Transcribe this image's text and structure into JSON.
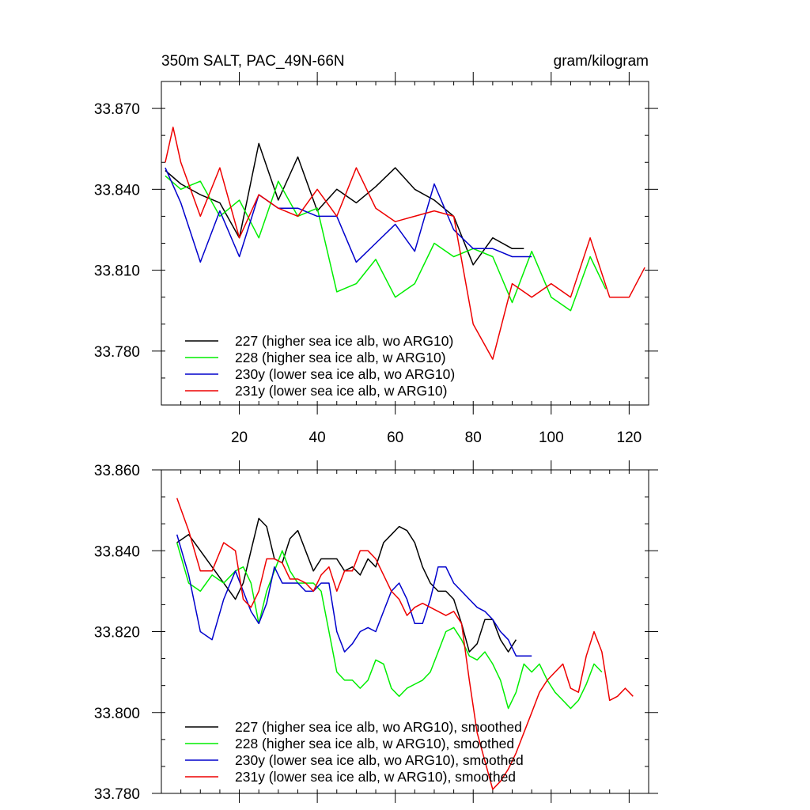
{
  "figure": {
    "title_left": "350m SALT, PAC_49N-66N",
    "title_right": "gram/kilogram"
  },
  "chart_data": [
    {
      "type": "line",
      "title": "350m SALT, PAC_49N-66N",
      "units": "gram/kilogram",
      "xlim": [
        0,
        125
      ],
      "ylim": [
        33.76,
        33.88
      ],
      "x_ticks": [
        20,
        40,
        60,
        80,
        100,
        120
      ],
      "y_ticks": [
        33.78,
        33.81,
        33.84,
        33.87
      ],
      "y_tick_labels": [
        "33.780",
        "33.810",
        "33.840",
        "33.870"
      ],
      "legend_position": "bottom-left",
      "series": [
        {
          "name": "227 (higher sea ice alb, wo ARG10)",
          "color": "#000000",
          "x": [
            1,
            5,
            10,
            15,
            20,
            25,
            30,
            35,
            40,
            45,
            50,
            55,
            60,
            65,
            70,
            75,
            80,
            85,
            90,
            93
          ],
          "y": [
            33.847,
            33.842,
            33.838,
            33.835,
            33.822,
            33.857,
            33.836,
            33.852,
            33.832,
            33.84,
            33.835,
            33.841,
            33.848,
            33.84,
            33.836,
            33.83,
            33.812,
            33.822,
            33.818,
            33.818
          ]
        },
        {
          "name": "228 (higher sea ice alb, w ARG10)",
          "color": "#00ee00",
          "x": [
            1,
            5,
            10,
            15,
            20,
            25,
            30,
            35,
            40,
            45,
            50,
            55,
            60,
            65,
            70,
            75,
            80,
            85,
            90,
            95,
            100,
            105,
            110,
            114
          ],
          "y": [
            33.845,
            33.84,
            33.843,
            33.83,
            33.836,
            33.822,
            33.843,
            33.83,
            33.833,
            33.802,
            33.805,
            33.814,
            33.8,
            33.805,
            33.82,
            33.815,
            33.818,
            33.815,
            33.798,
            33.817,
            33.8,
            33.795,
            33.815,
            33.803
          ]
        },
        {
          "name": "230y (lower sea ice alb, wo ARG10)",
          "color": "#0000cc",
          "x": [
            1,
            5,
            10,
            15,
            20,
            25,
            30,
            35,
            40,
            45,
            50,
            55,
            60,
            65,
            70,
            75,
            80,
            85,
            90,
            95
          ],
          "y": [
            33.848,
            33.835,
            33.813,
            33.832,
            33.815,
            33.838,
            33.833,
            33.833,
            33.83,
            33.83,
            33.813,
            33.82,
            33.827,
            33.817,
            33.842,
            33.825,
            33.818,
            33.818,
            33.815,
            33.815
          ]
        },
        {
          "name": "231y (lower sea ice alb, w ARG10)",
          "color": "#ee0000",
          "x": [
            1,
            3,
            5,
            10,
            15,
            20,
            25,
            30,
            35,
            40,
            45,
            50,
            55,
            60,
            65,
            70,
            75,
            80,
            85,
            90,
            95,
            100,
            105,
            110,
            115,
            120,
            124
          ],
          "y": [
            33.85,
            33.863,
            33.85,
            33.83,
            33.848,
            33.822,
            33.838,
            33.833,
            33.83,
            33.84,
            33.83,
            33.848,
            33.833,
            33.828,
            33.83,
            33.832,
            33.83,
            33.79,
            33.777,
            33.805,
            33.8,
            33.805,
            33.8,
            33.822,
            33.8,
            33.8,
            33.811
          ]
        }
      ]
    },
    {
      "type": "line",
      "xlim": [
        0,
        125
      ],
      "ylim": [
        33.78,
        33.86
      ],
      "x_ticks": [
        20,
        40,
        60,
        80,
        100,
        120
      ],
      "y_ticks": [
        33.78,
        33.8,
        33.82,
        33.84,
        33.86
      ],
      "y_tick_labels": [
        "33.780",
        "33.800",
        "33.820",
        "33.840",
        "33.860"
      ],
      "legend_position": "bottom-left",
      "series": [
        {
          "name": "227 (higher sea ice alb, wo ARG10), smoothed",
          "color": "#000000",
          "x": [
            4,
            7,
            10,
            13,
            16,
            19,
            21,
            23,
            25,
            27,
            29,
            31,
            33,
            35,
            37,
            39,
            41,
            43,
            45,
            47,
            49,
            51,
            53,
            55,
            57,
            59,
            61,
            63,
            65,
            67,
            69,
            71,
            73,
            75,
            77,
            79,
            81,
            83,
            85,
            87,
            89,
            91
          ],
          "y": [
            33.842,
            33.844,
            33.84,
            33.836,
            33.832,
            33.828,
            33.832,
            33.84,
            33.848,
            33.846,
            33.838,
            33.837,
            33.843,
            33.845,
            33.84,
            33.835,
            33.838,
            33.838,
            33.838,
            33.835,
            33.836,
            33.834,
            33.838,
            33.836,
            33.842,
            33.844,
            33.846,
            33.845,
            33.842,
            33.836,
            33.832,
            33.83,
            33.83,
            33.828,
            33.822,
            33.815,
            33.817,
            33.823,
            33.823,
            33.818,
            33.815,
            33.818
          ]
        },
        {
          "name": "228 (higher sea ice alb, w ARG10), smoothed",
          "color": "#00ee00",
          "x": [
            4,
            7,
            10,
            13,
            16,
            19,
            21,
            23,
            25,
            27,
            29,
            31,
            33,
            35,
            37,
            39,
            41,
            43,
            45,
            47,
            49,
            51,
            53,
            55,
            57,
            59,
            61,
            63,
            65,
            67,
            69,
            71,
            73,
            75,
            77,
            79,
            81,
            83,
            85,
            87,
            89,
            91,
            93,
            95,
            97,
            99,
            101,
            103,
            105,
            107,
            109,
            111,
            113
          ],
          "y": [
            33.842,
            33.832,
            33.83,
            33.834,
            33.832,
            33.835,
            33.836,
            33.832,
            33.822,
            33.83,
            33.835,
            33.84,
            33.835,
            33.832,
            33.832,
            33.832,
            33.83,
            33.82,
            33.81,
            33.808,
            33.808,
            33.806,
            33.808,
            33.813,
            33.812,
            33.806,
            33.804,
            33.806,
            33.807,
            33.808,
            33.81,
            33.815,
            33.82,
            33.821,
            33.818,
            33.814,
            33.813,
            33.815,
            33.812,
            33.808,
            33.801,
            33.805,
            33.812,
            33.81,
            33.812,
            33.808,
            33.805,
            33.803,
            33.801,
            33.803,
            33.807,
            33.812,
            33.81
          ]
        },
        {
          "name": "230y (lower sea ice alb, wo ARG10), smoothed",
          "color": "#0000cc",
          "x": [
            4,
            7,
            10,
            13,
            16,
            19,
            21,
            23,
            25,
            27,
            29,
            31,
            33,
            35,
            37,
            39,
            41,
            43,
            45,
            47,
            49,
            51,
            53,
            55,
            57,
            59,
            61,
            63,
            65,
            67,
            69,
            71,
            73,
            75,
            77,
            79,
            81,
            83,
            85,
            87,
            89,
            91,
            93,
            95
          ],
          "y": [
            33.844,
            33.834,
            33.82,
            33.818,
            33.828,
            33.835,
            33.83,
            33.825,
            33.822,
            33.827,
            33.836,
            33.832,
            33.832,
            33.832,
            33.83,
            33.83,
            33.832,
            33.832,
            33.82,
            33.815,
            33.817,
            33.82,
            33.821,
            33.82,
            33.825,
            33.83,
            33.832,
            33.828,
            33.822,
            33.822,
            33.828,
            33.836,
            33.836,
            33.832,
            33.83,
            33.828,
            33.826,
            33.825,
            33.823,
            33.82,
            33.818,
            33.814,
            33.814,
            33.814
          ]
        },
        {
          "name": "231y (lower sea ice alb, w ARG10), smoothed",
          "color": "#ee0000",
          "x": [
            4,
            7,
            10,
            13,
            16,
            19,
            21,
            23,
            25,
            27,
            29,
            31,
            33,
            35,
            37,
            39,
            41,
            43,
            45,
            47,
            49,
            51,
            53,
            55,
            57,
            59,
            61,
            63,
            65,
            67,
            69,
            71,
            73,
            75,
            77,
            79,
            81,
            83,
            85,
            87,
            89,
            91,
            93,
            95,
            97,
            99,
            101,
            103,
            105,
            107,
            109,
            111,
            113,
            115,
            117,
            119,
            121
          ],
          "y": [
            33.853,
            33.845,
            33.835,
            33.835,
            33.842,
            33.84,
            33.828,
            33.826,
            33.83,
            33.838,
            33.838,
            33.837,
            33.833,
            33.833,
            33.832,
            33.83,
            33.834,
            33.836,
            33.83,
            33.835,
            33.835,
            33.84,
            33.84,
            33.838,
            33.834,
            33.83,
            33.828,
            33.824,
            33.826,
            33.827,
            33.826,
            33.825,
            33.824,
            33.825,
            33.822,
            33.808,
            33.795,
            33.788,
            33.781,
            33.783,
            33.786,
            33.79,
            33.795,
            33.8,
            33.805,
            33.808,
            33.81,
            33.812,
            33.806,
            33.805,
            33.814,
            33.82,
            33.815,
            33.803,
            33.804,
            33.806,
            33.804
          ]
        }
      ]
    }
  ]
}
